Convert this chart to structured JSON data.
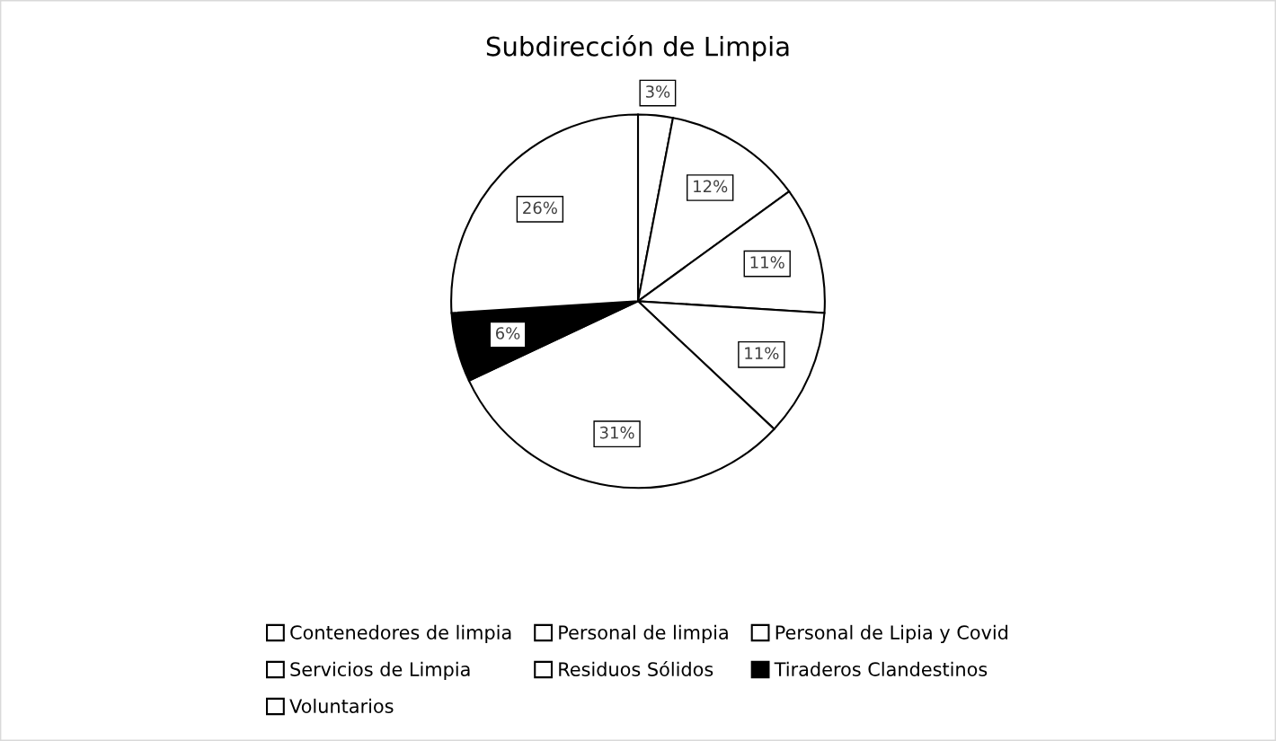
{
  "chart_data": {
    "type": "pie",
    "title": "Subdirección de Limpia",
    "categories": [
      "Contenedores de limpia",
      "Personal de limpia",
      "Personal de Lipia y Covid",
      "Servicios de Limpia",
      "Residuos Sólidos",
      "Tiraderos Clandestinos",
      "Voluntarios"
    ],
    "values": [
      3,
      12,
      11,
      11,
      31,
      6,
      26
    ],
    "colors": [
      "#ffffff",
      "#ffffff",
      "#ffffff",
      "#ffffff",
      "#ffffff",
      "#000000",
      "#ffffff"
    ],
    "value_labels": [
      "3%",
      "12%",
      "11%",
      "11%",
      "31%",
      "6%",
      "26%"
    ],
    "legend": "bottom"
  }
}
